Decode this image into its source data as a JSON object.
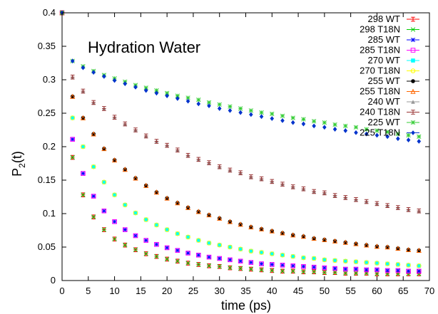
{
  "chart_data": {
    "type": "scatter",
    "title": "",
    "annotation": "Hydration Water",
    "xlabel": "time (ps)",
    "ylabel_main": "P",
    "ylabel_sub": "2",
    "ylabel_tail": "(t)",
    "xlim": [
      0,
      70
    ],
    "ylim": [
      0,
      0.4
    ],
    "xticks": [
      0,
      5,
      10,
      15,
      20,
      25,
      30,
      35,
      40,
      45,
      50,
      55,
      60,
      65,
      70
    ],
    "yticks": [
      0,
      0.05,
      0.1,
      0.15,
      0.2,
      0.25,
      0.3,
      0.35,
      0.4
    ],
    "ytick_labels": [
      "0",
      "0.05",
      "0.1",
      "0.15",
      "0.2",
      "0.25",
      "0.3",
      "0.35",
      "0.4"
    ],
    "grid": false,
    "legend_position": "top-right",
    "x": [
      0,
      2,
      4,
      6,
      8,
      10,
      12,
      14,
      16,
      18,
      20,
      22,
      24,
      26,
      28,
      30,
      32,
      34,
      36,
      38,
      40,
      42,
      44,
      46,
      48,
      50,
      52,
      54,
      56,
      58,
      60,
      62,
      64,
      66,
      68
    ],
    "series": [
      {
        "name": "298 WT",
        "color": "#ff0000",
        "marker": "errbar",
        "values": [
          0.4,
          0.184,
          0.128,
          0.095,
          0.076,
          0.062,
          0.053,
          0.046,
          0.04,
          0.036,
          0.032,
          0.029,
          0.026,
          0.024,
          0.022,
          0.021,
          0.019,
          0.018,
          0.017,
          0.016,
          0.015,
          0.014,
          0.014,
          0.013,
          0.013,
          0.012,
          0.012,
          0.011,
          0.011,
          0.011,
          0.01,
          0.01,
          0.01,
          0.01,
          0.01
        ]
      },
      {
        "name": "298 T18N",
        "color": "#00cc00",
        "marker": "x",
        "values": [
          0.4,
          0.184,
          0.128,
          0.095,
          0.076,
          0.062,
          0.053,
          0.046,
          0.04,
          0.036,
          0.032,
          0.029,
          0.026,
          0.024,
          0.022,
          0.021,
          0.019,
          0.018,
          0.017,
          0.016,
          0.015,
          0.014,
          0.014,
          0.013,
          0.013,
          0.012,
          0.012,
          0.011,
          0.011,
          0.011,
          0.01,
          0.01,
          0.01,
          0.01,
          0.01
        ]
      },
      {
        "name": "285 WT",
        "color": "#0000ff",
        "marker": "star",
        "values": [
          0.4,
          0.211,
          0.16,
          0.126,
          0.104,
          0.088,
          0.076,
          0.067,
          0.06,
          0.054,
          0.049,
          0.045,
          0.041,
          0.038,
          0.035,
          0.033,
          0.031,
          0.029,
          0.027,
          0.025,
          0.024,
          0.023,
          0.022,
          0.021,
          0.02,
          0.019,
          0.018,
          0.017,
          0.017,
          0.016,
          0.016,
          0.015,
          0.015,
          0.014,
          0.014
        ]
      },
      {
        "name": "285 T18N",
        "color": "#ff00ff",
        "marker": "square",
        "values": [
          0.4,
          0.211,
          0.16,
          0.126,
          0.104,
          0.088,
          0.076,
          0.067,
          0.06,
          0.054,
          0.049,
          0.045,
          0.041,
          0.038,
          0.035,
          0.033,
          0.031,
          0.029,
          0.027,
          0.025,
          0.024,
          0.023,
          0.022,
          0.021,
          0.02,
          0.019,
          0.018,
          0.017,
          0.017,
          0.016,
          0.016,
          0.015,
          0.015,
          0.014,
          0.014
        ]
      },
      {
        "name": "270 WT",
        "color": "#00ffff",
        "marker": "filled-square",
        "values": [
          0.4,
          0.243,
          0.2,
          0.17,
          0.147,
          0.128,
          0.113,
          0.101,
          0.091,
          0.083,
          0.076,
          0.07,
          0.065,
          0.06,
          0.056,
          0.053,
          0.05,
          0.047,
          0.044,
          0.042,
          0.04,
          0.038,
          0.036,
          0.034,
          0.033,
          0.031,
          0.03,
          0.029,
          0.028,
          0.027,
          0.026,
          0.025,
          0.024,
          0.023,
          0.022
        ]
      },
      {
        "name": "270 T18N",
        "color": "#ffff00",
        "marker": "circle",
        "values": [
          0.4,
          0.243,
          0.2,
          0.17,
          0.147,
          0.128,
          0.113,
          0.101,
          0.091,
          0.083,
          0.076,
          0.07,
          0.065,
          0.06,
          0.056,
          0.053,
          0.05,
          0.047,
          0.044,
          0.042,
          0.04,
          0.038,
          0.036,
          0.034,
          0.033,
          0.031,
          0.03,
          0.029,
          0.028,
          0.027,
          0.026,
          0.025,
          0.024,
          0.023,
          0.022
        ]
      },
      {
        "name": "255 WT",
        "color": "#000000",
        "marker": "filled-circle",
        "values": [
          0.4,
          0.275,
          0.243,
          0.219,
          0.197,
          0.18,
          0.166,
          0.153,
          0.142,
          0.132,
          0.123,
          0.116,
          0.109,
          0.103,
          0.098,
          0.093,
          0.088,
          0.084,
          0.08,
          0.077,
          0.074,
          0.071,
          0.068,
          0.066,
          0.063,
          0.061,
          0.059,
          0.057,
          0.055,
          0.053,
          0.051,
          0.05,
          0.048,
          0.046,
          0.045
        ]
      },
      {
        "name": "255 T18N",
        "color": "#ff6600",
        "marker": "triangle",
        "values": [
          0.4,
          0.275,
          0.243,
          0.219,
          0.197,
          0.18,
          0.166,
          0.153,
          0.142,
          0.132,
          0.123,
          0.116,
          0.109,
          0.103,
          0.098,
          0.093,
          0.088,
          0.084,
          0.08,
          0.077,
          0.074,
          0.071,
          0.068,
          0.066,
          0.063,
          0.061,
          0.059,
          0.057,
          0.055,
          0.053,
          0.051,
          0.05,
          0.048,
          0.046,
          0.045
        ]
      },
      {
        "name": "240 WT",
        "color": "#999999",
        "marker": "filled-triangle",
        "values": [
          0.4,
          0.304,
          0.283,
          0.266,
          0.257,
          0.244,
          0.234,
          0.225,
          0.216,
          0.208,
          0.202,
          0.195,
          0.187,
          0.181,
          0.176,
          0.17,
          0.165,
          0.161,
          0.155,
          0.152,
          0.148,
          0.144,
          0.14,
          0.137,
          0.133,
          0.131,
          0.127,
          0.124,
          0.121,
          0.118,
          0.115,
          0.112,
          0.109,
          0.106,
          0.104
        ]
      },
      {
        "name": "240 T18N",
        "color": "#993333",
        "marker": "errbar",
        "values": [
          0.4,
          0.304,
          0.283,
          0.266,
          0.257,
          0.244,
          0.234,
          0.225,
          0.216,
          0.208,
          0.202,
          0.195,
          0.187,
          0.181,
          0.176,
          0.17,
          0.165,
          0.161,
          0.155,
          0.152,
          0.148,
          0.144,
          0.14,
          0.137,
          0.133,
          0.131,
          0.127,
          0.124,
          0.121,
          0.118,
          0.115,
          0.112,
          0.109,
          0.106,
          0.104
        ]
      },
      {
        "name": "225 WT",
        "color": "#33cc33",
        "marker": "star",
        "values": [
          0.4,
          0.328,
          0.32,
          0.313,
          0.307,
          0.302,
          0.297,
          0.292,
          0.288,
          0.284,
          0.28,
          0.276,
          0.273,
          0.27,
          0.266,
          0.263,
          0.26,
          0.257,
          0.254,
          0.251,
          0.249,
          0.246,
          0.243,
          0.241,
          0.238,
          0.236,
          0.233,
          0.231,
          0.229,
          0.226,
          0.224,
          0.222,
          0.219,
          0.217,
          0.215
        ]
      },
      {
        "name": "225 T18N",
        "color": "#0033cc",
        "marker": "diamond",
        "values": [
          0.4,
          0.328,
          0.318,
          0.311,
          0.305,
          0.299,
          0.294,
          0.289,
          0.284,
          0.28,
          0.276,
          0.272,
          0.268,
          0.264,
          0.261,
          0.257,
          0.254,
          0.251,
          0.248,
          0.245,
          0.242,
          0.239,
          0.236,
          0.234,
          0.231,
          0.229,
          0.226,
          0.224,
          0.221,
          0.219,
          0.217,
          0.215,
          0.212,
          0.21,
          0.208
        ]
      }
    ]
  }
}
